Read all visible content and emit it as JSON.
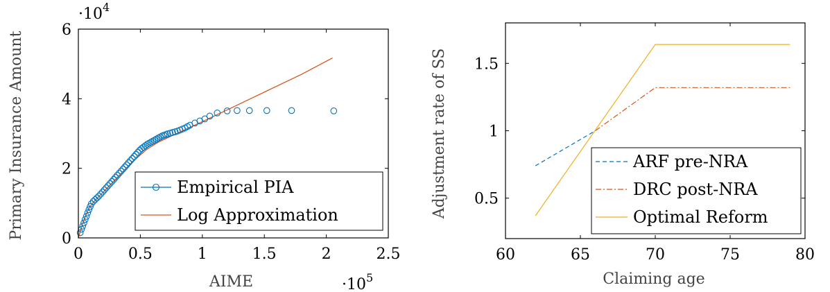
{
  "chart_data": [
    {
      "type": "scatter",
      "xlabel": "AIME",
      "ylabel": "Primary Insurance Amount",
      "xlim": [
        0,
        250000
      ],
      "ylim": [
        0,
        60000
      ],
      "xticks": [
        0,
        50000,
        100000,
        150000,
        200000,
        250000
      ],
      "xtick_labels": [
        "0",
        "0.5",
        "1",
        "1.5",
        "2",
        "2.5"
      ],
      "yticks": [
        0,
        20000,
        40000,
        60000
      ],
      "ytick_labels": [
        "0",
        "2",
        "4",
        "6"
      ],
      "x_scale_label": "·10",
      "x_scale_exp": "5",
      "y_scale_label": "·10",
      "y_scale_exp": "4",
      "legend_position": "bottom-right",
      "colors": {
        "empirical": "#0072bd",
        "log": "#d95319"
      },
      "series": [
        {
          "name": "Empirical PIA",
          "marker": "circle",
          "x": [
            1500,
            2500,
            3500,
            4500,
            5500,
            6500,
            7500,
            8500,
            9500,
            10500,
            12000,
            13500,
            15000,
            16500,
            18000,
            19500,
            21000,
            22500,
            24000,
            25500,
            27000,
            28500,
            30000,
            31500,
            33000,
            34500,
            36000,
            37500,
            39000,
            40500,
            42000,
            43500,
            45000,
            46500,
            48000,
            49500,
            51000,
            52500,
            54000,
            55500,
            57000,
            58500,
            60000,
            61500,
            63000,
            64500,
            66000,
            67500,
            69000,
            70500,
            72000,
            74000,
            76000,
            78000,
            80000,
            82000,
            84000,
            86000,
            88000,
            90000,
            94000,
            98000,
            102000,
            106000,
            112000,
            120000,
            128000,
            138000,
            152000,
            172000,
            206000
          ],
          "y": [
            1500,
            2500,
            3400,
            4300,
            5300,
            6200,
            7200,
            8100,
            9000,
            9800,
            10500,
            11000,
            11500,
            12000,
            12600,
            13200,
            13800,
            14400,
            15000,
            15600,
            16200,
            16800,
            17400,
            18000,
            18600,
            19200,
            19800,
            20400,
            21000,
            21600,
            22200,
            22800,
            23400,
            24000,
            24600,
            25200,
            25700,
            26100,
            26500,
            26900,
            27200,
            27500,
            27800,
            28100,
            28400,
            28700,
            29000,
            29300,
            29500,
            29700,
            29900,
            30100,
            30300,
            30500,
            30700,
            31000,
            31300,
            31600,
            32000,
            32400,
            33000,
            33600,
            34200,
            35000,
            35900,
            36500,
            36600,
            36600,
            36600,
            36600,
            36500
          ]
        },
        {
          "name": "Log Approximation",
          "marker": "none",
          "x": [
            0,
            3000,
            6000,
            9000,
            12000,
            18000,
            25000,
            35000,
            45000,
            55000,
            65000,
            80000,
            100000,
            120000,
            150000,
            180000,
            205000
          ],
          "y": [
            0,
            3500,
            6500,
            8800,
            10200,
            12400,
            15000,
            18700,
            22300,
            25400,
            27600,
            30100,
            33400,
            36800,
            41900,
            47000,
            51700
          ]
        }
      ]
    },
    {
      "type": "line",
      "xlabel": "Claiming age",
      "ylabel": "Adjustment rate of SS",
      "xlim": [
        60,
        80
      ],
      "ylim": [
        0.2,
        1.8
      ],
      "xticks": [
        60,
        65,
        70,
        75,
        80
      ],
      "xtick_labels": [
        "60",
        "65",
        "70",
        "75",
        "80"
      ],
      "yticks": [
        0.5,
        1,
        1.5
      ],
      "ytick_labels": [
        "0.5",
        "1",
        "1.5"
      ],
      "legend_position": "bottom-right",
      "colors": {
        "arf": "#0072bd",
        "drc": "#d95319",
        "optimal": "#edb120"
      },
      "series": [
        {
          "name": "ARF pre-NRA",
          "style": "dashed",
          "x": [
            62,
            66
          ],
          "y": [
            0.74,
            1.0
          ]
        },
        {
          "name": "DRC post-NRA",
          "style": "dashdot",
          "x": [
            66,
            70,
            79
          ],
          "y": [
            1.0,
            1.32,
            1.32
          ]
        },
        {
          "name": "Optimal Reform",
          "style": "solid",
          "x": [
            62,
            70,
            79
          ],
          "y": [
            0.37,
            1.64,
            1.64
          ]
        }
      ]
    }
  ]
}
